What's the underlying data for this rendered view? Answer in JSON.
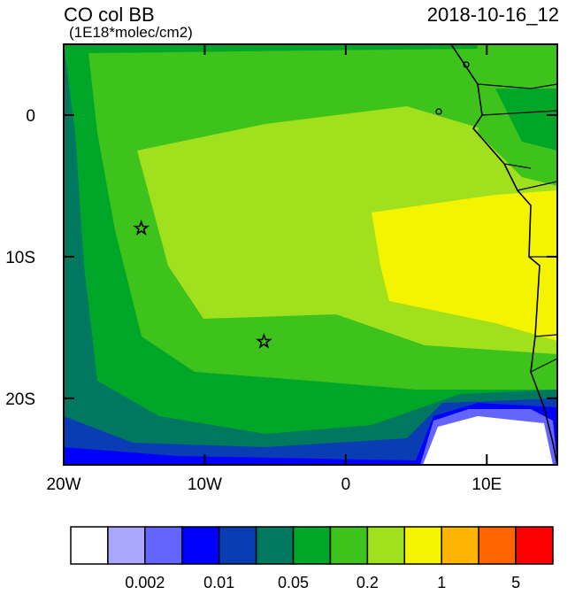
{
  "header": {
    "title": "CO col BB",
    "units": "(1E18*molec/cm2)",
    "date": "2018-10-16_12"
  },
  "map": {
    "xlim": [
      -20,
      15
    ],
    "ylim": [
      -24.7,
      5
    ],
    "xticks": [
      {
        "value": -20,
        "label": "20W"
      },
      {
        "value": -10,
        "label": "10W"
      },
      0,
      {
        "value": 10,
        "label": "10E"
      }
    ],
    "yticks": [
      0,
      {
        "value": -10,
        "label": "10S"
      },
      {
        "value": -20,
        "label": "20S"
      }
    ],
    "markers": [
      {
        "lon": -14.5,
        "lat": -8
      },
      {
        "lon": -5.8,
        "lat": -16
      }
    ]
  },
  "colorbar": {
    "colors": [
      "#ffffff",
      "#a8a8ff",
      "#6464ff",
      "#0000ff",
      "#0a3cb4",
      "#007860",
      "#00a628",
      "#3ec21c",
      "#a0e01c",
      "#f4f400",
      "#ffb400",
      "#ff6400",
      "#ff0000"
    ],
    "labels": [
      0.002,
      0.01,
      0.05,
      0.2,
      1,
      5
    ]
  }
}
